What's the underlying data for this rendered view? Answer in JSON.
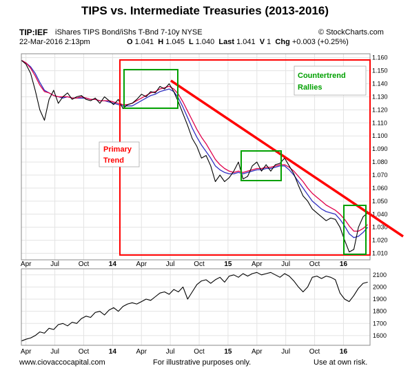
{
  "title": "TIPS vs. Intermediate Treasuries  (2013-2016)",
  "header": {
    "symbol": "TIP:IEF",
    "description": "iShares TIPS Bond/iShs T-Bnd 7-10y  NYSE",
    "source": "© StockCharts.com",
    "date": "22-Mar-2016 2:13pm",
    "ohlc": {
      "o_label": "O",
      "o": "1.041",
      "h_label": "H",
      "h": "1.045",
      "l_label": "L",
      "l": "1.040",
      "last_label": "Last",
      "last": "1.041",
      "v_label": "V",
      "v": "1",
      "chg_label": "Chg",
      "chg": "+0.003 (+0.25%)"
    }
  },
  "annotations": {
    "primary_trend_line1": "Primary",
    "primary_trend_line2": "Trend",
    "countertrend_line1": "Countertrend",
    "countertrend_line2": "Rallies"
  },
  "footer": {
    "left": "www.ciovaccocapital.com",
    "center": "For illustrative purposes only.",
    "right": "Use at own risk."
  },
  "colors": {
    "price": "#000000",
    "ma_short": "#e0004a",
    "ma_long": "#3030c0",
    "trendline": "#ff0000",
    "rectangle": "#ff0000",
    "boxes": "#00a000",
    "primary_text": "#ff0000",
    "countertrend_text": "#00a000"
  },
  "chart_data": [
    {
      "type": "line",
      "grid": true,
      "x_ticks": [
        {
          "t": 0.0,
          "label": "Apr"
        },
        {
          "t": 0.25,
          "label": "Jul"
        },
        {
          "t": 0.5,
          "label": "Oct"
        },
        {
          "t": 0.75,
          "label": "14"
        },
        {
          "t": 1.0,
          "label": "Apr"
        },
        {
          "t": 1.25,
          "label": "Jul"
        },
        {
          "t": 1.5,
          "label": "Oct"
        },
        {
          "t": 1.75,
          "label": "15"
        },
        {
          "t": 2.0,
          "label": "Apr"
        },
        {
          "t": 2.25,
          "label": "Jul"
        },
        {
          "t": 2.5,
          "label": "Oct"
        },
        {
          "t": 2.75,
          "label": "16"
        }
      ],
      "xlim": [
        -0.04,
        2.98
      ],
      "ylim": [
        1.005,
        1.163
      ],
      "y_ticks": [
        1.01,
        1.02,
        1.03,
        1.04,
        1.05,
        1.06,
        1.07,
        1.08,
        1.09,
        1.1,
        1.11,
        1.12,
        1.13,
        1.14,
        1.15,
        1.16
      ],
      "y_tick_labels": [
        "1.010",
        "1.020",
        "1.030",
        "1.040",
        "1.050",
        "1.060",
        "1.070",
        "1.080",
        "1.090",
        "1.100",
        "1.110",
        "1.120",
        "1.130",
        "1.140",
        "1.150",
        "1.160"
      ],
      "series": [
        {
          "role": "price",
          "x": [
            -0.04,
            0.0,
            0.04,
            0.08,
            0.12,
            0.16,
            0.2,
            0.24,
            0.28,
            0.32,
            0.36,
            0.4,
            0.44,
            0.48,
            0.52,
            0.56,
            0.6,
            0.64,
            0.68,
            0.72,
            0.76,
            0.8,
            0.84,
            0.88,
            0.92,
            0.96,
            1.0,
            1.04,
            1.08,
            1.12,
            1.16,
            1.2,
            1.24,
            1.28,
            1.32,
            1.36,
            1.4,
            1.44,
            1.48,
            1.52,
            1.56,
            1.6,
            1.64,
            1.68,
            1.72,
            1.76,
            1.8,
            1.84,
            1.88,
            1.92,
            1.96,
            2.0,
            2.04,
            2.08,
            2.12,
            2.16,
            2.2,
            2.24,
            2.28,
            2.32,
            2.36,
            2.4,
            2.44,
            2.48,
            2.52,
            2.56,
            2.6,
            2.64,
            2.68,
            2.72,
            2.76,
            2.8,
            2.84,
            2.88,
            2.92,
            2.96
          ],
          "y": [
            1.158,
            1.155,
            1.148,
            1.135,
            1.12,
            1.112,
            1.128,
            1.135,
            1.125,
            1.13,
            1.133,
            1.128,
            1.13,
            1.131,
            1.128,
            1.127,
            1.129,
            1.125,
            1.13,
            1.127,
            1.124,
            1.128,
            1.121,
            1.124,
            1.125,
            1.128,
            1.132,
            1.13,
            1.134,
            1.133,
            1.138,
            1.136,
            1.14,
            1.134,
            1.126,
            1.117,
            1.108,
            1.098,
            1.092,
            1.083,
            1.085,
            1.077,
            1.065,
            1.07,
            1.065,
            1.068,
            1.073,
            1.08,
            1.067,
            1.069,
            1.077,
            1.08,
            1.073,
            1.078,
            1.073,
            1.078,
            1.079,
            1.083,
            1.077,
            1.071,
            1.062,
            1.054,
            1.05,
            1.044,
            1.041,
            1.038,
            1.035,
            1.037,
            1.036,
            1.03,
            1.02,
            1.011,
            1.013,
            1.03,
            1.038,
            1.041
          ]
        },
        {
          "role": "ma_short",
          "x": [
            -0.04,
            0.0,
            0.04,
            0.08,
            0.12,
            0.16,
            0.2,
            0.24,
            0.28,
            0.32,
            0.36,
            0.4,
            0.44,
            0.48,
            0.52,
            0.56,
            0.6,
            0.64,
            0.68,
            0.72,
            0.76,
            0.8,
            0.84,
            0.88,
            0.92,
            0.96,
            1.0,
            1.04,
            1.08,
            1.12,
            1.16,
            1.2,
            1.24,
            1.28,
            1.32,
            1.36,
            1.4,
            1.44,
            1.48,
            1.52,
            1.56,
            1.6,
            1.64,
            1.68,
            1.72,
            1.76,
            1.8,
            1.84,
            1.88,
            1.92,
            1.96,
            2.0,
            2.04,
            2.08,
            2.12,
            2.16,
            2.2,
            2.24,
            2.28,
            2.32,
            2.36,
            2.4,
            2.44,
            2.48,
            2.52,
            2.56,
            2.6,
            2.64,
            2.68,
            2.72,
            2.76,
            2.8,
            2.84,
            2.88,
            2.92,
            2.96
          ],
          "y": [
            1.158,
            1.156,
            1.152,
            1.146,
            1.139,
            1.134,
            1.133,
            1.131,
            1.13,
            1.13,
            1.13,
            1.129,
            1.129,
            1.13,
            1.129,
            1.128,
            1.128,
            1.127,
            1.127,
            1.127,
            1.126,
            1.125,
            1.124,
            1.124,
            1.125,
            1.127,
            1.129,
            1.131,
            1.133,
            1.134,
            1.136,
            1.137,
            1.138,
            1.136,
            1.132,
            1.126,
            1.119,
            1.112,
            1.105,
            1.099,
            1.094,
            1.088,
            1.082,
            1.078,
            1.075,
            1.073,
            1.072,
            1.073,
            1.072,
            1.073,
            1.074,
            1.075,
            1.075,
            1.076,
            1.076,
            1.077,
            1.078,
            1.078,
            1.076,
            1.073,
            1.069,
            1.065,
            1.06,
            1.056,
            1.053,
            1.05,
            1.047,
            1.045,
            1.043,
            1.04,
            1.036,
            1.031,
            1.027,
            1.027,
            1.029,
            1.032
          ]
        },
        {
          "role": "ma_long",
          "x": [
            -0.04,
            0.0,
            0.04,
            0.08,
            0.12,
            0.16,
            0.2,
            0.24,
            0.28,
            0.32,
            0.36,
            0.4,
            0.44,
            0.48,
            0.52,
            0.56,
            0.6,
            0.64,
            0.68,
            0.72,
            0.76,
            0.8,
            0.84,
            0.88,
            0.92,
            0.96,
            1.0,
            1.04,
            1.08,
            1.12,
            1.16,
            1.2,
            1.24,
            1.28,
            1.32,
            1.36,
            1.4,
            1.44,
            1.48,
            1.52,
            1.56,
            1.6,
            1.64,
            1.68,
            1.72,
            1.76,
            1.8,
            1.84,
            1.88,
            1.92,
            1.96,
            2.0,
            2.04,
            2.08,
            2.12,
            2.16,
            2.2,
            2.24,
            2.28,
            2.32,
            2.36,
            2.4,
            2.44,
            2.48,
            2.52,
            2.56,
            2.6,
            2.64,
            2.68,
            2.72,
            2.76,
            2.8,
            2.84,
            2.88,
            2.92,
            2.96
          ],
          "y": [
            1.158,
            1.156,
            1.153,
            1.148,
            1.141,
            1.135,
            1.133,
            1.131,
            1.13,
            1.129,
            1.13,
            1.129,
            1.129,
            1.129,
            1.129,
            1.128,
            1.128,
            1.127,
            1.127,
            1.126,
            1.125,
            1.124,
            1.123,
            1.123,
            1.123,
            1.125,
            1.127,
            1.129,
            1.131,
            1.132,
            1.134,
            1.135,
            1.136,
            1.134,
            1.129,
            1.122,
            1.114,
            1.106,
            1.099,
            1.093,
            1.088,
            1.083,
            1.077,
            1.074,
            1.072,
            1.071,
            1.071,
            1.072,
            1.071,
            1.072,
            1.073,
            1.074,
            1.074,
            1.075,
            1.075,
            1.076,
            1.077,
            1.077,
            1.074,
            1.07,
            1.065,
            1.06,
            1.055,
            1.05,
            1.047,
            1.044,
            1.042,
            1.041,
            1.04,
            1.036,
            1.031,
            1.025,
            1.022,
            1.023,
            1.026,
            1.03
          ]
        }
      ]
    },
    {
      "type": "line",
      "grid": true,
      "xlim": [
        -0.04,
        2.98
      ],
      "ylim": [
        1520,
        2150
      ],
      "y_ticks": [
        1600,
        1700,
        1800,
        1900,
        2000,
        2100
      ],
      "y_tick_labels": [
        "1600",
        "1700",
        "1800",
        "1900",
        "2000",
        "2100"
      ],
      "series": [
        {
          "role": "price",
          "x": [
            -0.04,
            0.0,
            0.04,
            0.08,
            0.12,
            0.16,
            0.2,
            0.24,
            0.28,
            0.32,
            0.36,
            0.4,
            0.44,
            0.48,
            0.52,
            0.56,
            0.6,
            0.64,
            0.68,
            0.72,
            0.76,
            0.8,
            0.84,
            0.88,
            0.92,
            0.96,
            1.0,
            1.04,
            1.08,
            1.12,
            1.16,
            1.2,
            1.24,
            1.28,
            1.32,
            1.36,
            1.4,
            1.44,
            1.48,
            1.52,
            1.56,
            1.6,
            1.64,
            1.68,
            1.72,
            1.76,
            1.8,
            1.84,
            1.88,
            1.92,
            1.96,
            2.0,
            2.04,
            2.08,
            2.12,
            2.16,
            2.2,
            2.24,
            2.28,
            2.32,
            2.36,
            2.4,
            2.44,
            2.48,
            2.52,
            2.56,
            2.6,
            2.64,
            2.68,
            2.72,
            2.76,
            2.8,
            2.84,
            2.88,
            2.92,
            2.96
          ],
          "y": [
            1555,
            1570,
            1580,
            1600,
            1630,
            1620,
            1660,
            1650,
            1690,
            1700,
            1680,
            1710,
            1700,
            1740,
            1760,
            1750,
            1790,
            1800,
            1770,
            1810,
            1830,
            1800,
            1840,
            1860,
            1870,
            1860,
            1880,
            1900,
            1890,
            1920,
            1950,
            1960,
            1940,
            1980,
            1960,
            2000,
            1900,
            1960,
            2020,
            2050,
            2060,
            2030,
            2060,
            2080,
            2040,
            2090,
            2100,
            2080,
            2110,
            2090,
            2110,
            2120,
            2100,
            2110,
            2120,
            2100,
            2080,
            2110,
            2090,
            2050,
            2000,
            1960,
            2000,
            2080,
            2090,
            2070,
            2090,
            2080,
            2060,
            1950,
            1900,
            1880,
            1930,
            1990,
            2030,
            2040
          ]
        }
      ]
    }
  ]
}
